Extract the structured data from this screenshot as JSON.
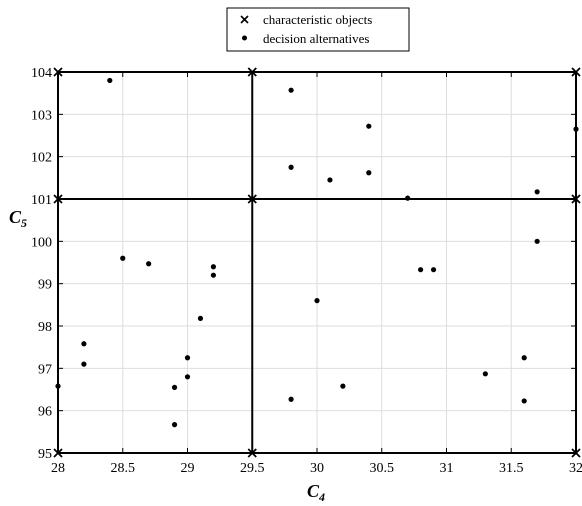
{
  "chart_data": {
    "type": "scatter",
    "xlabel": "C",
    "xlabel_sub": "4",
    "ylabel": "C",
    "ylabel_sub": "5",
    "xlim": [
      28,
      32
    ],
    "ylim": [
      95,
      104
    ],
    "x_ticks": [
      28,
      28.5,
      29,
      29.5,
      30,
      30.5,
      31,
      31.5,
      32
    ],
    "y_ticks": [
      95,
      96,
      97,
      98,
      99,
      100,
      101,
      102,
      103,
      104
    ],
    "grid": true,
    "legend_position": "top-center",
    "legend": [
      "characteristic objects",
      "decision alternatives"
    ],
    "series": [
      {
        "name": "characteristic objects",
        "marker": "x",
        "points": [
          [
            28,
            95
          ],
          [
            29.5,
            95
          ],
          [
            32,
            95
          ],
          [
            28,
            101
          ],
          [
            29.5,
            101
          ],
          [
            32,
            101
          ],
          [
            28,
            104
          ],
          [
            29.5,
            104
          ],
          [
            32,
            104
          ]
        ]
      },
      {
        "name": "decision alternatives",
        "marker": "dot",
        "points": [
          [
            28.4,
            103.8
          ],
          [
            28.5,
            99.6
          ],
          [
            28.7,
            99.47
          ],
          [
            28.2,
            97.58
          ],
          [
            28.2,
            97.1
          ],
          [
            28.0,
            96.58
          ],
          [
            28.9,
            96.55
          ],
          [
            28.9,
            95.67
          ],
          [
            29.0,
            97.25
          ],
          [
            29.0,
            96.8
          ],
          [
            29.1,
            98.18
          ],
          [
            29.2,
            99.4
          ],
          [
            29.2,
            99.2
          ],
          [
            29.8,
            103.57
          ],
          [
            29.8,
            101.75
          ],
          [
            30.1,
            101.45
          ],
          [
            30.4,
            102.72
          ],
          [
            30.4,
            101.62
          ],
          [
            30.7,
            101.02
          ],
          [
            30.0,
            98.6
          ],
          [
            29.8,
            96.27
          ],
          [
            30.2,
            96.58
          ],
          [
            30.8,
            99.33
          ],
          [
            30.9,
            99.33
          ],
          [
            31.3,
            96.87
          ],
          [
            31.6,
            97.25
          ],
          [
            31.6,
            96.23
          ],
          [
            31.7,
            101.17
          ],
          [
            31.7,
            100.0
          ],
          [
            32.0,
            102.65
          ]
        ]
      }
    ]
  }
}
